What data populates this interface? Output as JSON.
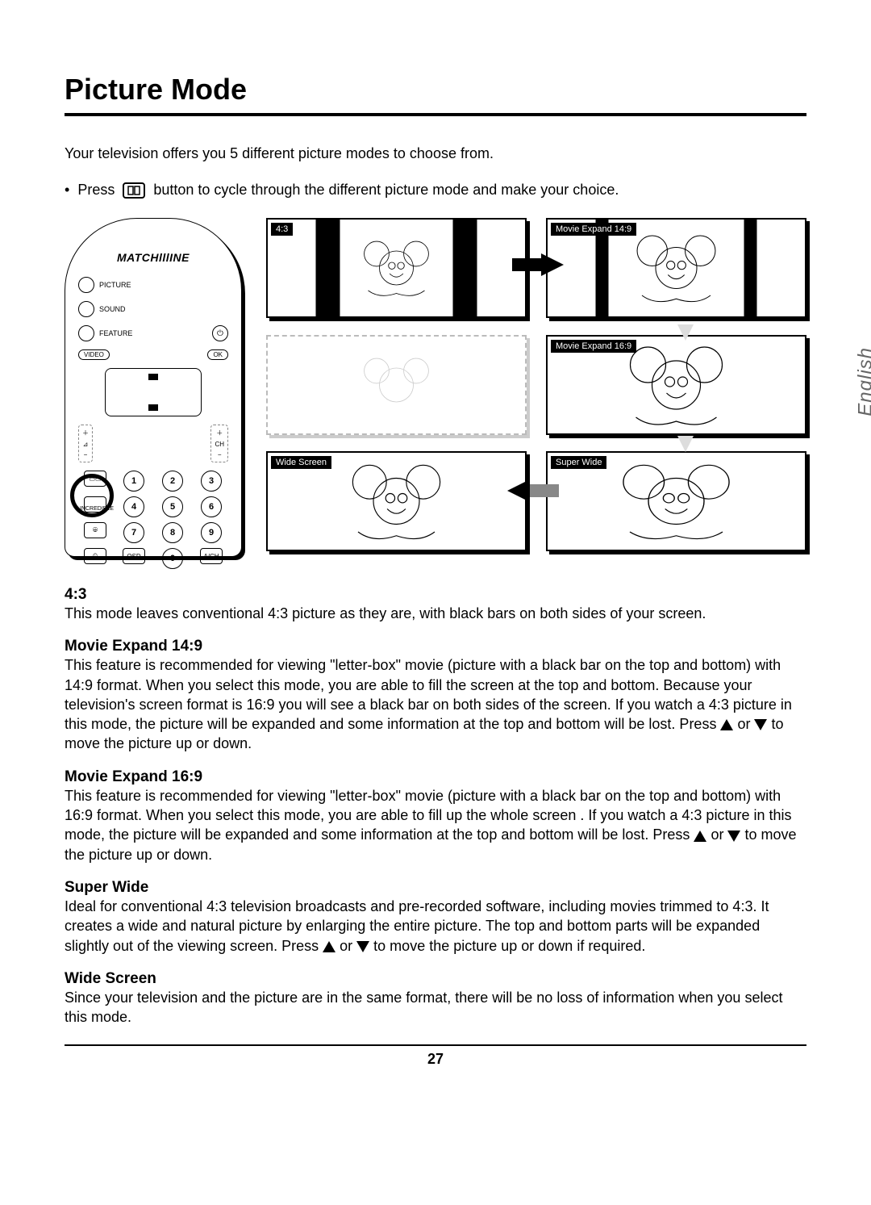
{
  "title": "Picture Mode",
  "intro": "Your television offers you 5 different picture modes to choose from.",
  "instruction_prefix": "Press",
  "instruction_suffix": "button to cycle through the different picture mode and make your choice.",
  "side_label": "English",
  "page_number": "27",
  "remote": {
    "brand": "MATCHlllINE",
    "labels": {
      "picture": "PICTURE",
      "sound": "SOUND",
      "feature": "FEATURE",
      "video": "VIDEO",
      "ok": "OK",
      "ch": "CH",
      "incredible": "INCREDIBLE",
      "surround": "SOUND",
      "osd": "OSD",
      "ach": "A/CH"
    },
    "numbers": [
      "1",
      "2",
      "3",
      "4",
      "5",
      "6",
      "7",
      "8",
      "9",
      "0"
    ]
  },
  "thumbnails": [
    {
      "key": "t43",
      "label": "4:3"
    },
    {
      "key": "t149",
      "label": "Movie Expand 14:9"
    },
    {
      "key": "t169",
      "label": "Movie Expand 16:9"
    },
    {
      "key": "twide",
      "label": "Wide Screen"
    },
    {
      "key": "tsuper",
      "label": "Super Wide"
    }
  ],
  "sections": [
    {
      "title": "4:3",
      "body_parts": [
        "This mode leaves conventional 4:3 picture as they are, with black bars on both sides of your screen."
      ]
    },
    {
      "title": "Movie Expand 14:9",
      "body_parts": [
        "This feature is recommended for viewing \"letter-box\" movie (picture with a black bar on the top and bottom) with 14:9 format. When you select this mode, you are able to fill the screen at the top and bottom. Because your television's screen format is 16:9 you will see a black bar on both sides of the screen. If you watch a 4:3 picture in this mode, the picture will be expanded and some information at the top and bottom will be lost. Press ",
        "__UP__",
        " or ",
        "__DOWN__",
        " to move the picture up or down."
      ]
    },
    {
      "title": "Movie Expand 16:9",
      "body_parts": [
        "This feature is recommended for viewing \"letter-box\" movie (picture with a black bar on the top and bottom) with 16:9 format. When you select this mode, you are able to fill up the whole screen . If you watch a 4:3 picture in this mode, the picture will be expanded and some information at the top and bottom will be lost. Press ",
        "__UP__",
        " or ",
        "__DOWN__",
        " to move the picture up or down."
      ]
    },
    {
      "title": "Super Wide",
      "body_parts": [
        "Ideal for conventional 4:3 television broadcasts and pre-recorded software, including movies trimmed to 4:3. It creates a wide and natural picture by enlarging the entire picture. The top and bottom parts will be expanded slightly out of the viewing screen. Press ",
        "__UP__",
        " or ",
        "__DOWN__",
        " to move the picture up or down if required."
      ]
    },
    {
      "title": "Wide Screen",
      "body_parts": [
        "Since your television and the picture are in the same format, there will be no loss of information when you select this mode."
      ]
    }
  ]
}
